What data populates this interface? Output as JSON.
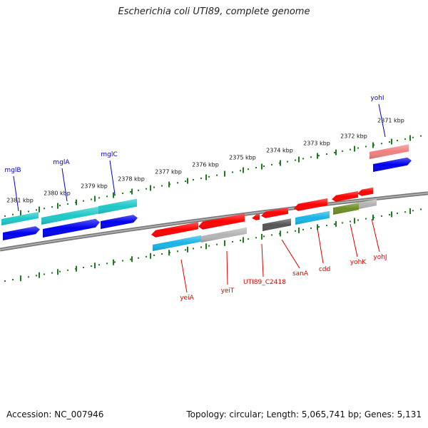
{
  "title": "Escherichia coli UTI89, complete genome",
  "footer": {
    "accession": "Accession: NC_007946",
    "summary": "Topology: circular; Length: 5,065,741 bp; Genes: 5,131"
  },
  "colors": {
    "background": "#ffffff",
    "backbone": "#7a7a7a",
    "tick": "#1e7a1e",
    "forward_label": "#0000cc",
    "reverse_label": "#dd0000",
    "cds_red": "#ff0000",
    "cds_blue": "#0000ee",
    "cds_cyan": "#1ec8c8",
    "cds_skyblue": "#19b4e6",
    "cds_grey": "#b4b4b4",
    "cds_darkgrey": "#555555",
    "cds_olive": "#6b8e23",
    "cds_salmon": "#f08080"
  },
  "forward_scale": {
    "ticks": [
      {
        "label": "2381 kbp"
      },
      {
        "label": "2380 kbp"
      },
      {
        "label": "2379 kbp"
      },
      {
        "label": "2378 kbp"
      },
      {
        "label": "2377 kbp"
      },
      {
        "label": "2376 kbp"
      },
      {
        "label": "2375 kbp"
      },
      {
        "label": "2374 kbp"
      },
      {
        "label": "2373 kbp"
      },
      {
        "label": "2372 kbp"
      },
      {
        "label": "2371 kbp"
      }
    ]
  },
  "forward_genes": [
    {
      "name": "mglB"
    },
    {
      "name": "mglA"
    },
    {
      "name": "mglC"
    },
    {
      "name": "yohI"
    }
  ],
  "reverse_genes": [
    {
      "name": "yeiA"
    },
    {
      "name": "yeiT"
    },
    {
      "name": "UTI89_C2418"
    },
    {
      "name": "sanA"
    },
    {
      "name": "cdd"
    },
    {
      "name": "yohK"
    },
    {
      "name": "yohJ"
    }
  ]
}
